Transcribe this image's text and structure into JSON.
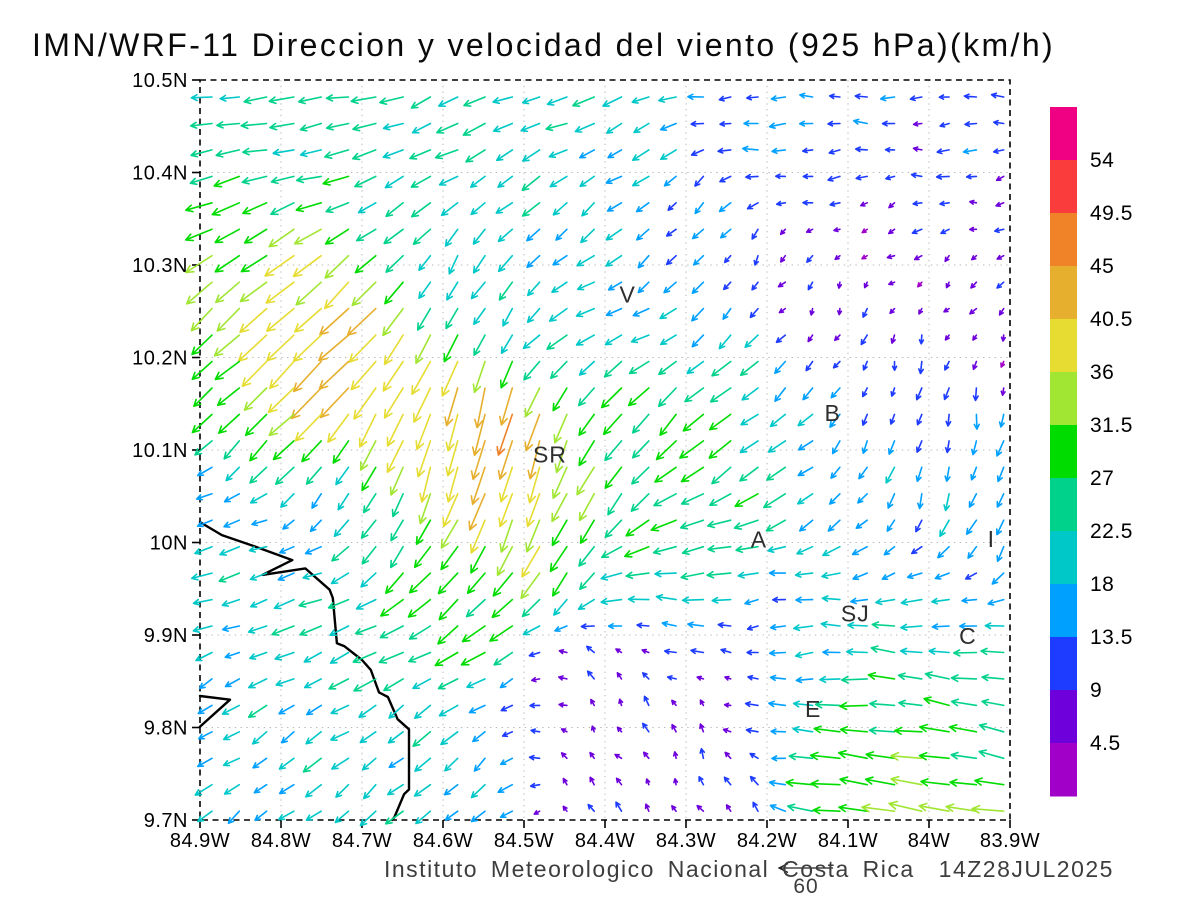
{
  "title": "IMN/WRF-11 Direccion y velocidad del viento (925 hPa)(km/h)",
  "footer": {
    "credit": "Instituto Meteorologico Nacional Costa Rica",
    "timestamp": "14Z28JUL2025"
  },
  "chart_data": {
    "type": "quiver",
    "title": "IMN/WRF-11 Direccion y velocidad del viento (925 hPa)(km/h)",
    "model": "IMN/WRF-11",
    "variable": "Direccion y velocidad del viento",
    "level": "925 hPa",
    "units": "km/h",
    "valid_time": "14Z28JUL2025",
    "xlim": [
      -84.9,
      -83.9
    ],
    "ylim": [
      9.7,
      10.5
    ],
    "grid": {
      "cols": 30,
      "rows": 28
    },
    "xticks": [
      {
        "label": "84.9W",
        "lon": -84.9
      },
      {
        "label": "84.8W",
        "lon": -84.8
      },
      {
        "label": "84.7W",
        "lon": -84.7
      },
      {
        "label": "84.6W",
        "lon": -84.6
      },
      {
        "label": "84.5W",
        "lon": -84.5
      },
      {
        "label": "84.4W",
        "lon": -84.4
      },
      {
        "label": "84.3W",
        "lon": -84.3
      },
      {
        "label": "84.2W",
        "lon": -84.2
      },
      {
        "label": "84.1W",
        "lon": -84.1
      },
      {
        "label": "84W",
        "lon": -84.0
      },
      {
        "label": "83.9W",
        "lon": -83.9
      }
    ],
    "yticks": [
      {
        "label": "10.5N",
        "lat": 10.5
      },
      {
        "label": "10.4N",
        "lat": 10.4
      },
      {
        "label": "10.3N",
        "lat": 10.3
      },
      {
        "label": "10.2N",
        "lat": 10.2
      },
      {
        "label": "10.1N",
        "lat": 10.1
      },
      {
        "label": "10N",
        "lat": 10.0
      },
      {
        "label": "9.9N",
        "lat": 9.9
      },
      {
        "label": "9.8N",
        "lat": 9.8
      },
      {
        "label": "9.7N",
        "lat": 9.7
      }
    ],
    "colorbar": {
      "levels": [
        4.5,
        9,
        13.5,
        18,
        22.5,
        27,
        31.5,
        36,
        40.5,
        45,
        49.5,
        54
      ],
      "colors_bottom_to_top": [
        "#A000C8",
        "#6E00DC",
        "#1E3CFF",
        "#00A0FF",
        "#00C8C8",
        "#00D28C",
        "#00DC00",
        "#A0E632",
        "#E6DC32",
        "#E6AF2D",
        "#F08228",
        "#FA3C3C",
        "#F00082"
      ]
    },
    "reference_vector": {
      "value": 60,
      "label": "60"
    },
    "stations": [
      {
        "label": "V",
        "lon": -84.372,
        "lat": 10.268
      },
      {
        "label": "SR",
        "lon": -84.468,
        "lat": 10.095
      },
      {
        "label": "B",
        "lon": -84.119,
        "lat": 10.14
      },
      {
        "label": "A",
        "lon": -84.21,
        "lat": 10.003
      },
      {
        "label": "I",
        "lon": -83.923,
        "lat": 10.004
      },
      {
        "label": "SJ",
        "lon": -84.091,
        "lat": 9.923
      },
      {
        "label": "C",
        "lon": -83.952,
        "lat": 9.899
      },
      {
        "label": "E",
        "lon": -84.143,
        "lat": 9.82
      }
    ],
    "coastline": [
      [
        [
          -84.9,
          10.022
        ],
        [
          -84.873,
          10.008
        ],
        [
          -84.83,
          9.995
        ],
        [
          -84.786,
          9.981
        ],
        [
          -84.823,
          9.965
        ],
        [
          -84.77,
          9.972
        ],
        [
          -84.74,
          9.949
        ],
        [
          -84.736,
          9.94
        ],
        [
          -84.731,
          9.891
        ],
        [
          -84.722,
          9.888
        ],
        [
          -84.7,
          9.873
        ],
        [
          -84.689,
          9.862
        ],
        [
          -84.679,
          9.838
        ],
        [
          -84.668,
          9.833
        ],
        [
          -84.656,
          9.809
        ],
        [
          -84.642,
          9.798
        ],
        [
          -84.642,
          9.733
        ],
        [
          -84.648,
          9.728
        ],
        [
          -84.66,
          9.703
        ],
        [
          -84.663,
          9.7
        ]
      ],
      [
        [
          -84.9,
          9.834
        ],
        [
          -84.863,
          9.83
        ],
        [
          -84.9,
          9.801
        ]
      ]
    ],
    "sampled_vectors": [
      {
        "lon": -84.881,
        "lat": 10.473,
        "u": -22,
        "v": -2
      },
      {
        "lon": -84.777,
        "lat": 10.468,
        "u": -24,
        "v": -3
      },
      {
        "lon": -84.468,
        "lat": 10.468,
        "u": -22,
        "v": -6
      },
      {
        "lon": -84.184,
        "lat": 10.468,
        "u": -14,
        "v": 0
      },
      {
        "lon": -83.974,
        "lat": 10.468,
        "u": -11,
        "v": 0
      },
      {
        "lon": -83.974,
        "lat": 10.365,
        "u": -12,
        "v": -1
      },
      {
        "lon": -84.851,
        "lat": 10.37,
        "u": -26,
        "v": -8
      },
      {
        "lon": -84.594,
        "lat": 10.403,
        "u": -22,
        "v": -10
      },
      {
        "lon": -84.406,
        "lat": 10.392,
        "u": -18,
        "v": -8
      },
      {
        "lon": -84.826,
        "lat": 10.262,
        "u": -28,
        "v": -26
      },
      {
        "lon": -84.881,
        "lat": 10.23,
        "u": -28,
        "v": -24
      },
      {
        "lon": -84.869,
        "lat": 10.17,
        "u": -3,
        "v": -4
      },
      {
        "lon": -84.781,
        "lat": 10.158,
        "u": -46,
        "v": -46
      },
      {
        "lon": -84.715,
        "lat": 10.197,
        "u": -30,
        "v": -25
      },
      {
        "lon": -84.554,
        "lat": 10.289,
        "u": -7,
        "v": -20
      },
      {
        "lon": -84.456,
        "lat": 10.343,
        "u": -10,
        "v": -18
      },
      {
        "lon": -84.406,
        "lat": 10.273,
        "u": -26,
        "v": -3
      },
      {
        "lon": -84.332,
        "lat": 10.316,
        "u": -4,
        "v": -12
      },
      {
        "lon": -84.06,
        "lat": 10.284,
        "u": -2,
        "v": -4
      },
      {
        "lon": -83.931,
        "lat": 10.273,
        "u": -3,
        "v": -5
      },
      {
        "lon": -84.036,
        "lat": 10.154,
        "u": -1,
        "v": -13
      },
      {
        "lon": -84.011,
        "lat": 10.041,
        "u": -3,
        "v": -18
      },
      {
        "lon": -84.622,
        "lat": 10.116,
        "u": -10,
        "v": -46
      },
      {
        "lon": -84.616,
        "lat": 10.019,
        "u": -15,
        "v": -42
      },
      {
        "lon": -84.526,
        "lat": 10.078,
        "u": -10,
        "v": -56
      },
      {
        "lon": -84.419,
        "lat": 10.078,
        "u": -13,
        "v": -22
      },
      {
        "lon": -84.777,
        "lat": 10.062,
        "u": -3,
        "v": -4
      },
      {
        "lon": -84.665,
        "lat": 10.041,
        "u": -4,
        "v": -5
      },
      {
        "lon": -84.326,
        "lat": 10.105,
        "u": -20,
        "v": -20
      },
      {
        "lon": -84.206,
        "lat": 10.086,
        "u": -26,
        "v": -17
      },
      {
        "lon": -84.122,
        "lat": 10.116,
        "u": -9,
        "v": -7
      },
      {
        "lon": -84.554,
        "lat": 10.003,
        "u": -14,
        "v": -26
      },
      {
        "lon": -84.283,
        "lat": 9.978,
        "u": -30,
        "v": 2
      },
      {
        "lon": -84.591,
        "lat": 9.954,
        "u": -32,
        "v": -6
      },
      {
        "lon": -84.74,
        "lat": 9.946,
        "u": -26,
        "v": -5
      },
      {
        "lon": -84.888,
        "lat": 9.997,
        "u": -22,
        "v": -6
      },
      {
        "lon": -84.777,
        "lat": 9.824,
        "u": -16,
        "v": -12
      },
      {
        "lon": -84.585,
        "lat": 9.77,
        "u": -15,
        "v": -13
      },
      {
        "lon": -84.863,
        "lat": 9.716,
        "u": -14,
        "v": -10
      },
      {
        "lon": -84.888,
        "lat": 9.878,
        "u": -15,
        "v": -5
      },
      {
        "lon": -84.394,
        "lat": 9.824,
        "u": -4,
        "v": 6
      },
      {
        "lon": -84.283,
        "lat": 9.77,
        "u": -2,
        "v": 8
      },
      {
        "lon": -84.375,
        "lat": 9.727,
        "u": -5,
        "v": 7
      },
      {
        "lon": -84.202,
        "lat": 9.891,
        "u": -4,
        "v": -2
      },
      {
        "lon": -84.073,
        "lat": 9.925,
        "u": -22,
        "v": 1
      },
      {
        "lon": -83.968,
        "lat": 9.849,
        "u": -28,
        "v": 4
      },
      {
        "lon": -84.054,
        "lat": 9.77,
        "u": -34,
        "v": 6
      },
      {
        "lon": -84.104,
        "lat": 9.835,
        "u": -26,
        "v": -2
      },
      {
        "lon": -83.912,
        "lat": 9.981,
        "u": -8,
        "v": -16
      },
      {
        "lon": -83.956,
        "lat": 9.895,
        "u": -20,
        "v": 6
      }
    ]
  }
}
